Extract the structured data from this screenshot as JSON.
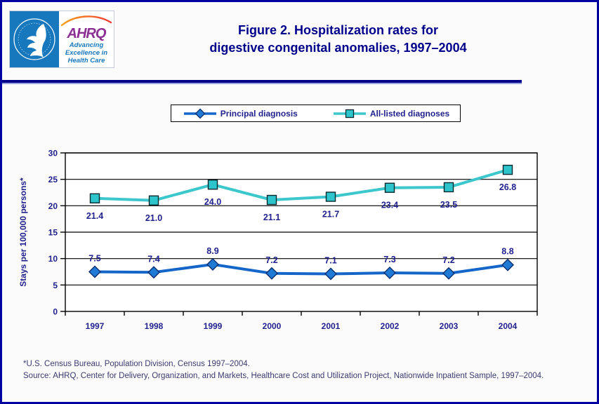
{
  "header": {
    "title_line1": "Figure 2. Hospitalization rates for",
    "title_line2": "digestive congenital anomalies, 1997–2004",
    "logo": {
      "hhs_seal": "U.S. Department of Health & Human Services seal",
      "acronym": "AHRQ",
      "tagline_line1": "Advancing",
      "tagline_line2": "Excellence in",
      "tagline_line3": "Health Care"
    }
  },
  "legend": {
    "items": [
      {
        "label": "Principal diagnosis",
        "marker": "diamond",
        "color": "#1566c8"
      },
      {
        "label": "All-listed diagnoses",
        "marker": "square",
        "color": "#3cc7cc"
      }
    ]
  },
  "chart_data": {
    "type": "line",
    "title": "Figure 2. Hospitalization rates for digestive congenital anomalies, 1997–2004",
    "categories": [
      "1997",
      "1998",
      "1999",
      "2000",
      "2001",
      "2002",
      "2003",
      "2004"
    ],
    "series": [
      {
        "name": "Principal diagnosis",
        "values": [
          7.5,
          7.4,
          8.9,
          7.2,
          7.1,
          7.3,
          7.2,
          8.8
        ],
        "color": "#1566c8",
        "marker": "diamond",
        "marker_fill": "#1e7ad4",
        "marker_stroke": "#0d2f70",
        "label_position": "above"
      },
      {
        "name": "All-listed diagnoses",
        "values": [
          21.4,
          21.0,
          24.0,
          21.1,
          21.7,
          23.4,
          23.5,
          26.8
        ],
        "color": "#3cc7cc",
        "marker": "square",
        "marker_fill": "#2ec4cc",
        "marker_stroke": "#0a2a2e",
        "label_position": "below"
      }
    ],
    "xlabel": "",
    "ylabel": "Stays per 100,000 persons*",
    "ylim": [
      0,
      30
    ],
    "yticks": [
      0,
      5,
      10,
      15,
      20,
      25,
      30
    ],
    "grid": true,
    "legend_position": "top"
  },
  "colors": {
    "page_border": "#0000a0",
    "title_text": "#00008b",
    "axis_text": "#22228e",
    "gridline": "#000000",
    "footnote_text": "#3a3a70",
    "hhs_blue": "#1878be",
    "ahrq_purple": "#8c2f94",
    "swoosh_orange": "#f9a11b",
    "swoosh_red": "#ef3e33"
  },
  "footnotes": {
    "line1": "*U.S. Census Bureau, Population Division, Census 1997–2004.",
    "line2": "Source: AHRQ, Center for Delivery, Organization, and Markets, Healthcare Cost and Utilization Project, Nationwide Inpatient Sample, 1997–2004."
  }
}
